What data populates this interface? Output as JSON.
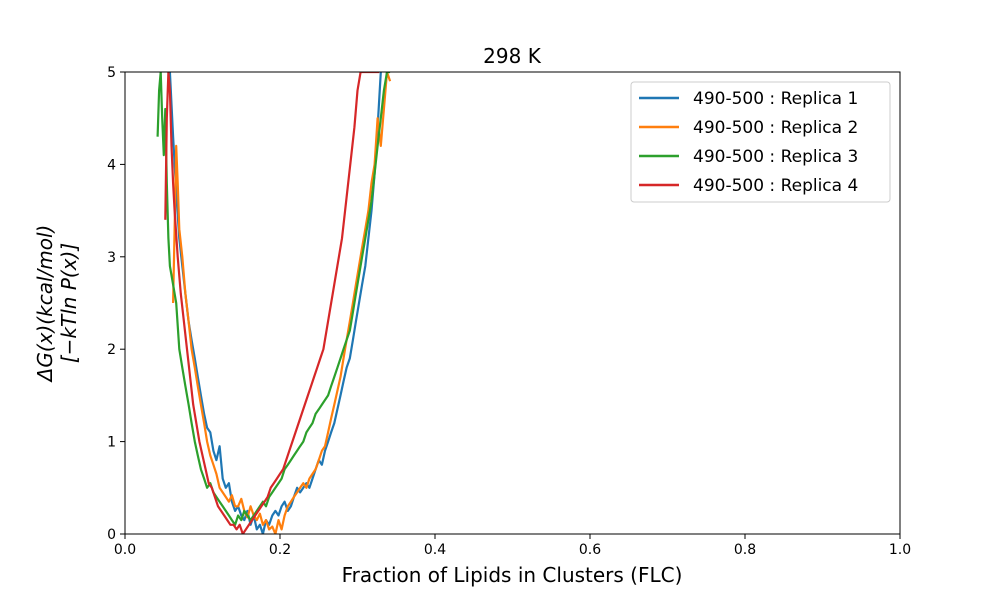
{
  "chart_data": {
    "type": "line",
    "title": "298 K",
    "xlabel": "Fraction of Lipids in Clusters (FLC)",
    "ylabel_line1": "ΔG(x)(kcal/mol)",
    "ylabel_line2": "[−kTln P(x)]",
    "xlim": [
      0.0,
      1.0
    ],
    "ylim": [
      0,
      5
    ],
    "xticks": [
      "0.0",
      "0.2",
      "0.4",
      "0.6",
      "0.8",
      "1.0"
    ],
    "yticks": [
      "0",
      "1",
      "2",
      "3",
      "4",
      "5"
    ],
    "grid": false,
    "legend_position": "top-right",
    "series": [
      {
        "name": "490-500 : Replica 1",
        "color": "#1f77b4",
        "x": [
          0.058,
          0.062,
          0.066,
          0.07,
          0.074,
          0.078,
          0.082,
          0.086,
          0.09,
          0.094,
          0.098,
          0.102,
          0.106,
          0.11,
          0.114,
          0.118,
          0.122,
          0.126,
          0.13,
          0.134,
          0.138,
          0.142,
          0.146,
          0.15,
          0.154,
          0.158,
          0.162,
          0.166,
          0.17,
          0.174,
          0.178,
          0.182,
          0.186,
          0.19,
          0.194,
          0.198,
          0.202,
          0.206,
          0.21,
          0.214,
          0.218,
          0.222,
          0.226,
          0.23,
          0.234,
          0.238,
          0.242,
          0.246,
          0.25,
          0.254,
          0.258,
          0.262,
          0.266,
          0.27,
          0.274,
          0.278,
          0.282,
          0.286,
          0.29,
          0.294,
          0.298,
          0.302,
          0.306,
          0.31,
          0.314,
          0.318,
          0.322,
          0.326,
          0.33
        ],
        "y": [
          5.0,
          4.3,
          3.7,
          3.2,
          2.9,
          2.6,
          2.3,
          2.1,
          1.9,
          1.7,
          1.5,
          1.3,
          1.15,
          1.1,
          0.9,
          0.8,
          0.95,
          0.6,
          0.5,
          0.55,
          0.35,
          0.25,
          0.3,
          0.2,
          0.15,
          0.25,
          0.1,
          0.2,
          0.05,
          0.1,
          0.0,
          0.15,
          0.1,
          0.2,
          0.25,
          0.2,
          0.3,
          0.35,
          0.25,
          0.3,
          0.4,
          0.5,
          0.45,
          0.5,
          0.55,
          0.5,
          0.6,
          0.7,
          0.8,
          0.75,
          0.9,
          1.0,
          1.1,
          1.2,
          1.35,
          1.5,
          1.65,
          1.8,
          1.9,
          2.1,
          2.3,
          2.5,
          2.7,
          2.9,
          3.2,
          3.5,
          3.9,
          4.4,
          5.0
        ]
      },
      {
        "name": "490-500 : Replica 2",
        "color": "#ff7f0e",
        "x": [
          0.062,
          0.064,
          0.066,
          0.068,
          0.07,
          0.074,
          0.078,
          0.082,
          0.086,
          0.09,
          0.094,
          0.098,
          0.102,
          0.106,
          0.11,
          0.114,
          0.118,
          0.122,
          0.126,
          0.13,
          0.134,
          0.138,
          0.142,
          0.146,
          0.15,
          0.154,
          0.158,
          0.162,
          0.166,
          0.17,
          0.174,
          0.178,
          0.182,
          0.186,
          0.19,
          0.194,
          0.198,
          0.202,
          0.206,
          0.21,
          0.214,
          0.218,
          0.222,
          0.226,
          0.23,
          0.234,
          0.238,
          0.242,
          0.246,
          0.25,
          0.254,
          0.258,
          0.262,
          0.266,
          0.27,
          0.274,
          0.278,
          0.282,
          0.286,
          0.29,
          0.294,
          0.298,
          0.302,
          0.306,
          0.31,
          0.314,
          0.318,
          0.322,
          0.326,
          0.33,
          0.334,
          0.338,
          0.342
        ],
        "y": [
          2.5,
          3.3,
          4.2,
          3.8,
          3.3,
          3.0,
          2.6,
          2.3,
          2.0,
          1.8,
          1.6,
          1.4,
          1.2,
          1.0,
          0.85,
          0.75,
          0.65,
          0.5,
          0.45,
          0.4,
          0.35,
          0.42,
          0.3,
          0.3,
          0.38,
          0.25,
          0.18,
          0.3,
          0.2,
          0.15,
          0.22,
          0.1,
          0.15,
          0.05,
          0.08,
          0.0,
          0.15,
          0.05,
          0.2,
          0.3,
          0.35,
          0.4,
          0.45,
          0.5,
          0.55,
          0.5,
          0.6,
          0.65,
          0.7,
          0.8,
          0.9,
          0.95,
          1.1,
          1.25,
          1.4,
          1.55,
          1.7,
          1.9,
          2.1,
          2.3,
          2.5,
          2.7,
          2.9,
          3.1,
          3.3,
          3.5,
          3.8,
          4.0,
          4.5,
          4.2,
          4.6,
          5.0,
          4.9
        ]
      },
      {
        "name": "490-500 : Replica 3",
        "color": "#2ca02c",
        "x": [
          0.042,
          0.044,
          0.046,
          0.048,
          0.05,
          0.052,
          0.054,
          0.056,
          0.058,
          0.062,
          0.066,
          0.07,
          0.074,
          0.078,
          0.082,
          0.086,
          0.09,
          0.094,
          0.098,
          0.102,
          0.106,
          0.11,
          0.114,
          0.118,
          0.122,
          0.126,
          0.13,
          0.134,
          0.138,
          0.142,
          0.146,
          0.15,
          0.154,
          0.158,
          0.162,
          0.166,
          0.17,
          0.174,
          0.178,
          0.182,
          0.186,
          0.19,
          0.194,
          0.198,
          0.202,
          0.206,
          0.21,
          0.214,
          0.218,
          0.222,
          0.226,
          0.23,
          0.234,
          0.238,
          0.242,
          0.246,
          0.25,
          0.254,
          0.258,
          0.262,
          0.266,
          0.27,
          0.274,
          0.278,
          0.282,
          0.286,
          0.29,
          0.294,
          0.298,
          0.302,
          0.306,
          0.31,
          0.314,
          0.318,
          0.322,
          0.326,
          0.33,
          0.334,
          0.338,
          0.342
        ],
        "y": [
          4.3,
          4.8,
          5.0,
          4.5,
          4.1,
          4.6,
          3.8,
          3.2,
          2.9,
          2.7,
          2.5,
          2.0,
          1.8,
          1.6,
          1.4,
          1.2,
          1.0,
          0.85,
          0.7,
          0.6,
          0.5,
          0.55,
          0.45,
          0.4,
          0.35,
          0.3,
          0.25,
          0.2,
          0.15,
          0.1,
          0.2,
          0.15,
          0.25,
          0.2,
          0.15,
          0.2,
          0.25,
          0.3,
          0.35,
          0.3,
          0.4,
          0.45,
          0.5,
          0.55,
          0.6,
          0.7,
          0.75,
          0.8,
          0.85,
          0.9,
          0.95,
          1.0,
          1.1,
          1.15,
          1.2,
          1.3,
          1.35,
          1.4,
          1.45,
          1.5,
          1.6,
          1.7,
          1.8,
          1.9,
          2.0,
          2.1,
          2.2,
          2.4,
          2.6,
          2.8,
          3.0,
          3.2,
          3.4,
          3.6,
          3.9,
          4.2,
          4.5,
          4.8,
          5.0,
          5.0
        ]
      },
      {
        "name": "490-500 : Replica 4",
        "color": "#d62728",
        "x": [
          0.052,
          0.054,
          0.056,
          0.058,
          0.06,
          0.062,
          0.064,
          0.068,
          0.072,
          0.076,
          0.08,
          0.084,
          0.088,
          0.092,
          0.096,
          0.1,
          0.104,
          0.108,
          0.112,
          0.116,
          0.12,
          0.124,
          0.128,
          0.132,
          0.136,
          0.14,
          0.144,
          0.148,
          0.152,
          0.156,
          0.16,
          0.164,
          0.168,
          0.172,
          0.176,
          0.18,
          0.184,
          0.188,
          0.192,
          0.196,
          0.2,
          0.204,
          0.208,
          0.212,
          0.216,
          0.22,
          0.224,
          0.228,
          0.232,
          0.236,
          0.24,
          0.244,
          0.248,
          0.252,
          0.256,
          0.26,
          0.264,
          0.268,
          0.272,
          0.276,
          0.28,
          0.284,
          0.288,
          0.292,
          0.296,
          0.3,
          0.304,
          0.308,
          0.312,
          0.316,
          0.32,
          0.324,
          0.328
        ],
        "y": [
          3.4,
          4.5,
          5.0,
          4.8,
          4.2,
          3.8,
          3.5,
          3.0,
          2.6,
          2.3,
          2.0,
          1.7,
          1.4,
          1.2,
          1.0,
          0.85,
          0.7,
          0.55,
          0.5,
          0.4,
          0.3,
          0.25,
          0.2,
          0.15,
          0.1,
          0.1,
          0.05,
          0.1,
          0.0,
          0.05,
          0.1,
          0.15,
          0.2,
          0.25,
          0.3,
          0.35,
          0.4,
          0.5,
          0.55,
          0.6,
          0.65,
          0.7,
          0.8,
          0.9,
          1.0,
          1.1,
          1.2,
          1.3,
          1.4,
          1.5,
          1.6,
          1.7,
          1.8,
          1.9,
          2.0,
          2.2,
          2.4,
          2.6,
          2.8,
          3.0,
          3.2,
          3.5,
          3.8,
          4.1,
          4.4,
          4.8,
          5.0,
          5.0,
          5.0,
          5.0,
          5.0,
          5.0,
          5.0
        ]
      }
    ]
  }
}
